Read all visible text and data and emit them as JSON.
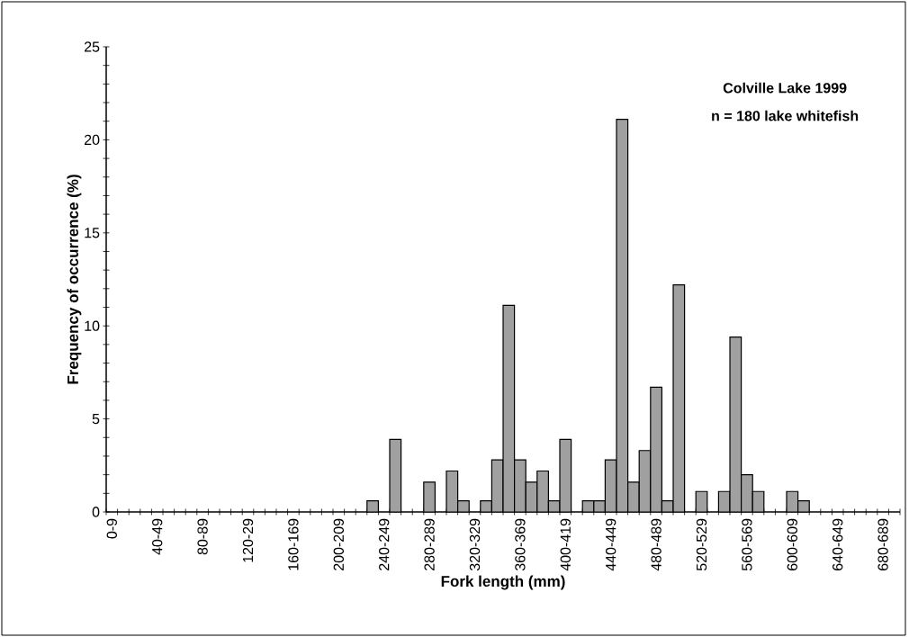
{
  "chart_data": {
    "type": "bar",
    "xlabel": "Fork length (mm)",
    "ylabel": "Frequency of occurrence (%)",
    "annotations": [
      "Colville Lake 1999",
      "n = 180 lake whitefish"
    ],
    "categories": [
      "0-9",
      null,
      null,
      null,
      "40-49",
      null,
      null,
      null,
      "80-89",
      null,
      null,
      null,
      "120-29",
      null,
      null,
      null,
      "160-169",
      null,
      null,
      null,
      "200-209",
      null,
      null,
      null,
      "240-249",
      null,
      null,
      null,
      "280-289",
      null,
      null,
      null,
      "320-329",
      null,
      null,
      null,
      "360-369",
      null,
      null,
      null,
      "400-419",
      null,
      null,
      null,
      "440-449",
      null,
      null,
      null,
      "480-489",
      null,
      null,
      null,
      "520-529",
      null,
      null,
      null,
      "560-569",
      null,
      null,
      null,
      "600-609",
      null,
      null,
      null,
      "640-649",
      null,
      null,
      null,
      "680-689",
      null
    ],
    "values": [
      null,
      null,
      null,
      null,
      null,
      null,
      null,
      null,
      null,
      null,
      null,
      null,
      null,
      null,
      null,
      null,
      null,
      null,
      null,
      null,
      null,
      null,
      null,
      0.6,
      null,
      3.9,
      null,
      null,
      1.6,
      null,
      2.2,
      0.6,
      null,
      0.6,
      2.8,
      11.1,
      2.8,
      1.6,
      2.2,
      0.6,
      3.9,
      null,
      0.6,
      0.6,
      2.8,
      21.1,
      1.6,
      3.3,
      6.7,
      0.6,
      12.2,
      null,
      1.1,
      null,
      1.1,
      9.4,
      2.0,
      1.1,
      null,
      null,
      1.1,
      0.6,
      null,
      null,
      null,
      null,
      null,
      null,
      null,
      null
    ],
    "color": "#a0a0a0",
    "ylim": [
      0,
      25
    ],
    "yticks": [
      0,
      {
        "value": 1,
        "label": null
      },
      {
        "value": 2,
        "label": null
      },
      {
        "value": 3,
        "label": null
      },
      {
        "value": 4,
        "label": null
      },
      5,
      {
        "value": 6,
        "label": null
      },
      {
        "value": 7,
        "label": null
      },
      {
        "value": 8,
        "label": null
      },
      {
        "value": 9,
        "label": null
      },
      10,
      {
        "value": 11,
        "label": null
      },
      {
        "value": 12,
        "label": null
      },
      {
        "value": 13,
        "label": null
      },
      {
        "value": 14,
        "label": null
      },
      15,
      {
        "value": 16,
        "label": null
      },
      {
        "value": 17,
        "label": null
      },
      {
        "value": 18,
        "label": null
      },
      {
        "value": 19,
        "label": null
      },
      20,
      {
        "value": 21,
        "label": null
      },
      {
        "value": 22,
        "label": null
      },
      {
        "value": 23,
        "label": null
      },
      {
        "value": 24,
        "label": null
      },
      25
    ]
  }
}
